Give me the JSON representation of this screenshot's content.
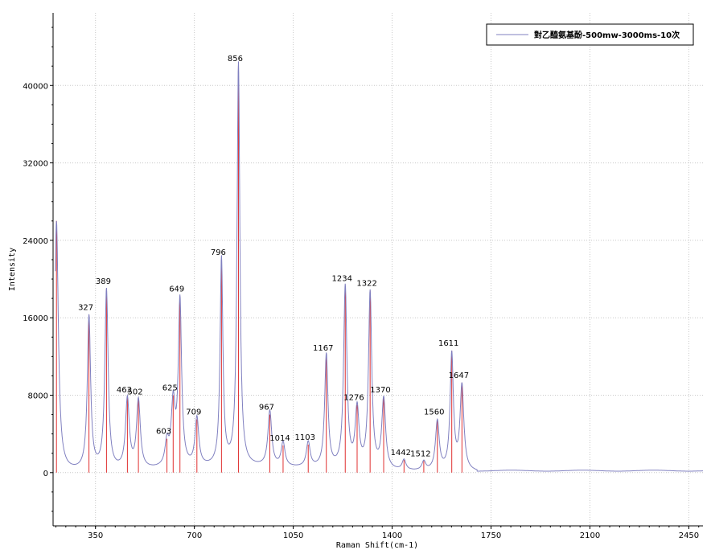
{
  "chart_data": {
    "type": "line",
    "xlabel": "Raman Shift(cm-1)",
    "ylabel": "Intensity",
    "xlim": [
      200,
      2500
    ],
    "ylim": [
      -5500,
      47500
    ],
    "x_ticks": [
      350,
      700,
      1050,
      1400,
      1750,
      2100,
      2450
    ],
    "y_ticks": [
      0,
      8000,
      16000,
      24000,
      32000,
      40000
    ],
    "grid": true,
    "legend_position": "top-right",
    "series": [
      {
        "name": "對乙醯氨基酚-500mw-3000ms-10次",
        "color": "#8080c0"
      }
    ],
    "peaks": [
      {
        "x": 327,
        "y": 16300,
        "label": "327"
      },
      {
        "x": 389,
        "y": 19000,
        "label": "389"
      },
      {
        "x": 463,
        "y": 7800,
        "label": "463"
      },
      {
        "x": 502,
        "y": 7600,
        "label": "502"
      },
      {
        "x": 603,
        "y": 3500,
        "label": "603"
      },
      {
        "x": 625,
        "y": 8000,
        "label": "625"
      },
      {
        "x": 649,
        "y": 18200,
        "label": "649"
      },
      {
        "x": 709,
        "y": 5500,
        "label": "709"
      },
      {
        "x": 796,
        "y": 22000,
        "label": "796"
      },
      {
        "x": 856,
        "y": 42000,
        "label": "856"
      },
      {
        "x": 967,
        "y": 6000,
        "label": "967"
      },
      {
        "x": 1014,
        "y": 2800,
        "label": "1014"
      },
      {
        "x": 1103,
        "y": 2900,
        "label": "1103"
      },
      {
        "x": 1167,
        "y": 12100,
        "label": "1167"
      },
      {
        "x": 1234,
        "y": 19300,
        "label": "1234"
      },
      {
        "x": 1276,
        "y": 7000,
        "label": "1276"
      },
      {
        "x": 1322,
        "y": 18800,
        "label": "1322"
      },
      {
        "x": 1370,
        "y": 7800,
        "label": "1370"
      },
      {
        "x": 1442,
        "y": 1300,
        "label": "1442"
      },
      {
        "x": 1512,
        "y": 1200,
        "label": "1512"
      },
      {
        "x": 1560,
        "y": 5500,
        "label": "1560"
      },
      {
        "x": 1611,
        "y": 12600,
        "label": "1611"
      },
      {
        "x": 1647,
        "y": 9300,
        "label": "1647"
      }
    ],
    "edge_peak": {
      "x": 212,
      "y": 26000
    }
  },
  "colors": {
    "line": "#8080c0",
    "marker": "#e03030",
    "axis": "#000000",
    "grid": "#c8c8c8"
  }
}
